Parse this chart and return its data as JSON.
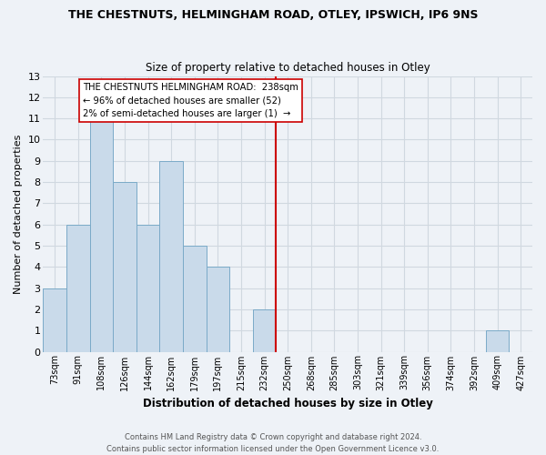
{
  "title": "THE CHESTNUTS, HELMINGHAM ROAD, OTLEY, IPSWICH, IP6 9NS",
  "subtitle": "Size of property relative to detached houses in Otley",
  "xlabel": "Distribution of detached houses by size in Otley",
  "ylabel": "Number of detached properties",
  "bin_labels": [
    "73sqm",
    "91sqm",
    "108sqm",
    "126sqm",
    "144sqm",
    "162sqm",
    "179sqm",
    "197sqm",
    "215sqm",
    "232sqm",
    "250sqm",
    "268sqm",
    "285sqm",
    "303sqm",
    "321sqm",
    "339sqm",
    "356sqm",
    "374sqm",
    "392sqm",
    "409sqm",
    "427sqm"
  ],
  "bar_heights": [
    3,
    6,
    11,
    8,
    6,
    9,
    5,
    4,
    0,
    2,
    0,
    0,
    0,
    0,
    0,
    0,
    0,
    0,
    0,
    1,
    0
  ],
  "bar_color": "#c9daea",
  "bar_edge_color": "#7aaac8",
  "ylim": [
    0,
    13
  ],
  "yticks": [
    0,
    1,
    2,
    3,
    4,
    5,
    6,
    7,
    8,
    9,
    10,
    11,
    12,
    13
  ],
  "grid_color": "#d0d8e0",
  "annotation_text_line1": "THE CHESTNUTS HELMINGHAM ROAD:  238sqm",
  "annotation_text_line2": "← 96% of detached houses are smaller (52)",
  "annotation_text_line3": "2% of semi-detached houses are larger (1)  →",
  "annotation_box_color": "#ffffff",
  "annotation_border_color": "#cc0000",
  "vline_color": "#cc0000",
  "footer_line1": "Contains HM Land Registry data © Crown copyright and database right 2024.",
  "footer_line2": "Contains public sector information licensed under the Open Government Licence v3.0.",
  "background_color": "#eef2f7"
}
